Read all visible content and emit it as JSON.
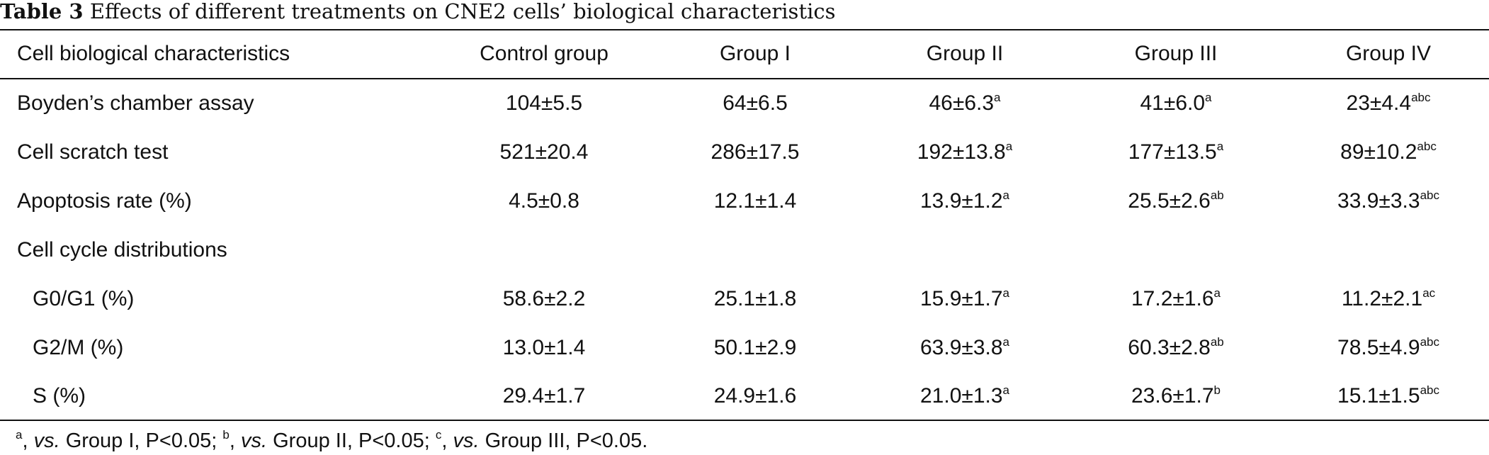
{
  "caption": {
    "label": "Table 3",
    "text": "Effects of different treatments on CNE2 cells’ biological characteristics"
  },
  "table": {
    "headers": [
      "Cell biological characteristics",
      "Control group",
      "Group I",
      "Group II",
      "Group III",
      "Group IV"
    ],
    "rows": [
      {
        "label": "Boyden’s chamber assay",
        "cells": [
          {
            "value": "104±5.5",
            "sup": ""
          },
          {
            "value": "64±6.5",
            "sup": ""
          },
          {
            "value": "46±6.3",
            "sup": "a"
          },
          {
            "value": "41±6.0",
            "sup": "a"
          },
          {
            "value": "23±4.4",
            "sup": "abc"
          }
        ]
      },
      {
        "label": "Cell scratch test",
        "cells": [
          {
            "value": "521±20.4",
            "sup": ""
          },
          {
            "value": "286±17.5",
            "sup": ""
          },
          {
            "value": "192±13.8",
            "sup": "a"
          },
          {
            "value": "177±13.5",
            "sup": "a"
          },
          {
            "value": "89±10.2",
            "sup": "abc"
          }
        ]
      },
      {
        "label": "Apoptosis rate (%)",
        "cells": [
          {
            "value": "4.5±0.8",
            "sup": ""
          },
          {
            "value": "12.1±1.4",
            "sup": ""
          },
          {
            "value": "13.9±1.2",
            "sup": "a"
          },
          {
            "value": "25.5±2.6",
            "sup": "ab"
          },
          {
            "value": "33.9±3.3",
            "sup": "abc"
          }
        ]
      },
      {
        "label": "Cell cycle distributions",
        "cells": []
      },
      {
        "label": "G0/G1 (%)",
        "indent": true,
        "cells": [
          {
            "value": "58.6±2.2",
            "sup": ""
          },
          {
            "value": "25.1±1.8",
            "sup": ""
          },
          {
            "value": "15.9±1.7",
            "sup": "a"
          },
          {
            "value": "17.2±1.6",
            "sup": "a"
          },
          {
            "value": "11.2±2.1",
            "sup": "ac"
          }
        ]
      },
      {
        "label": "G2/M (%)",
        "indent": true,
        "cells": [
          {
            "value": "13.0±1.4",
            "sup": ""
          },
          {
            "value": "50.1±2.9",
            "sup": ""
          },
          {
            "value": "63.9±3.8",
            "sup": "a"
          },
          {
            "value": "60.3±2.8",
            "sup": "ab"
          },
          {
            "value": "78.5±4.9",
            "sup": "abc"
          }
        ]
      },
      {
        "label": "S (%)",
        "indent": true,
        "cells": [
          {
            "value": "29.4±1.7",
            "sup": ""
          },
          {
            "value": "24.9±1.6",
            "sup": ""
          },
          {
            "value": "21.0±1.3",
            "sup": "a"
          },
          {
            "value": "23.6±1.7",
            "sup": "b"
          },
          {
            "value": "15.1±1.5",
            "sup": "abc"
          }
        ]
      }
    ]
  },
  "footnote": {
    "items": [
      {
        "sup": "a",
        "vs": "vs.",
        "text": " Group I, P<0.05; "
      },
      {
        "sup": "b",
        "vs": "vs.",
        "text": " Group II, P<0.05; "
      },
      {
        "sup": "c",
        "vs": "vs.",
        "text": " Group III, P<0.05."
      }
    ]
  }
}
